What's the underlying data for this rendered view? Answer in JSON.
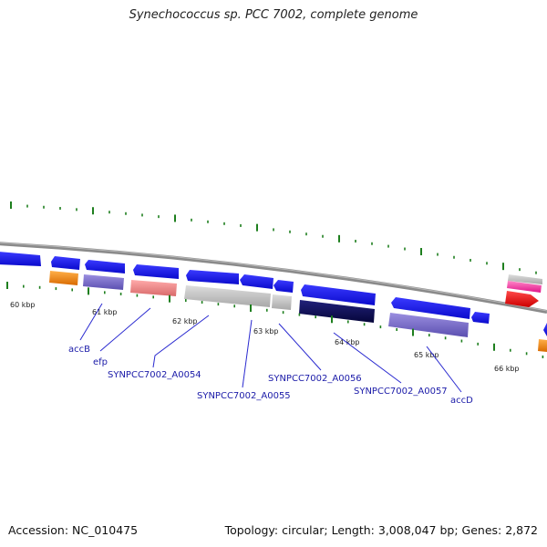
{
  "title": "Synechococcus sp. PCC 7002, complete genome",
  "accession": "Accession: NC_010475",
  "topology": "Topology: circular; Length: 3,008,047 bp; Genes: 2,872",
  "colors": {
    "backbone": "#8a8a8a",
    "tick": "#1e7f1e",
    "gene": "#1515e8",
    "label": "#1a1aa8",
    "callout": "#2a2ad0"
  },
  "kbp_labels": [
    "60 kbp",
    "61 kbp",
    "62 kbp",
    "63 kbp",
    "64 kbp",
    "65 kbp",
    "66 kbp"
  ],
  "gene_labels": [
    "accB",
    "efp",
    "SYNPCC7002_A0054",
    "SYNPCC7002_A0055",
    "SYNPCC7002_A0056",
    "SYNPCC7002_A0057",
    "accD"
  ]
}
